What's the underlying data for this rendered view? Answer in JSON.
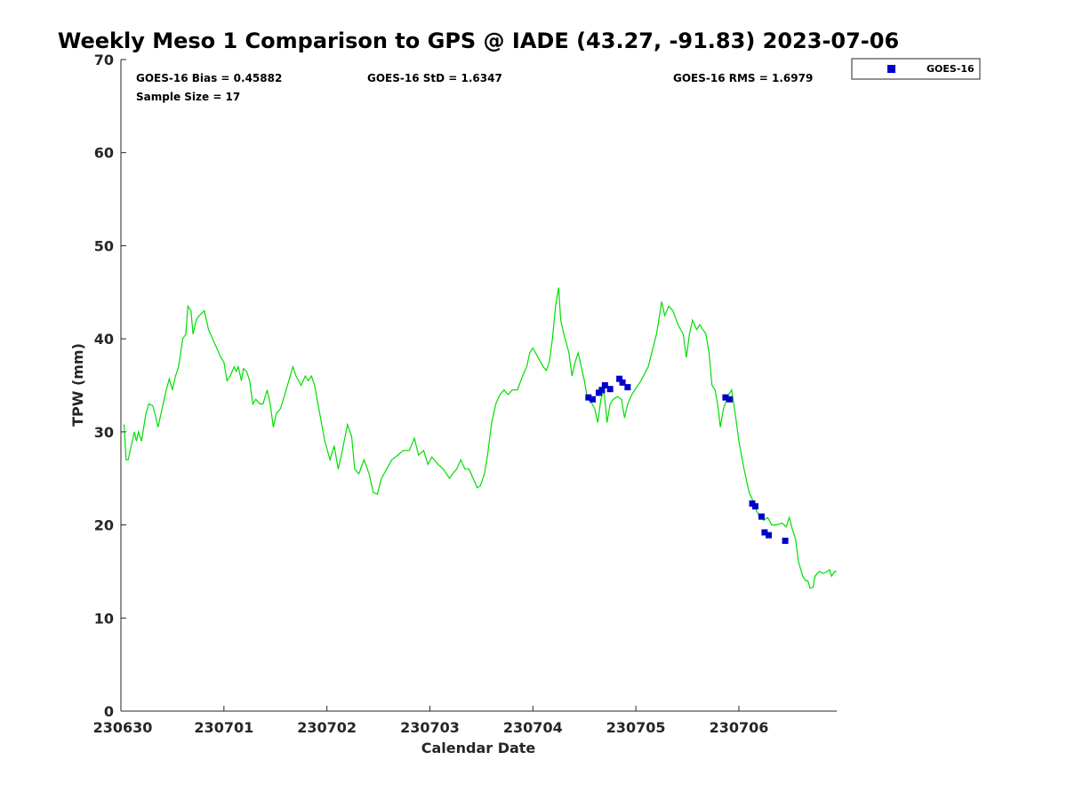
{
  "chart_data": {
    "type": "line+scatter",
    "title": "Weekly Meso 1 Comparison to GPS @ IADE (43.27, -91.83) 2023-07-06",
    "xlabel": "Calendar Date",
    "ylabel": "TPW (mm)",
    "xlim": [
      0,
      6.95
    ],
    "ylim": [
      0,
      70
    ],
    "x_ticks": [
      0,
      1,
      2,
      3,
      4,
      5,
      6
    ],
    "x_tick_labels": [
      "230630",
      "230701",
      "230702",
      "230703",
      "230704",
      "230705",
      "230706"
    ],
    "y_ticks": [
      0,
      10,
      20,
      30,
      40,
      50,
      60,
      70
    ],
    "y_tick_labels": [
      "0",
      "10",
      "20",
      "30",
      "40",
      "50",
      "60",
      "70"
    ],
    "stats": {
      "bias": "GOES-16 Bias = 0.45882",
      "std": "GOES-16 StD = 1.6347",
      "rms": "GOES-16 RMS = 1.6979",
      "sample_size": "Sample Size = 17"
    },
    "legend": {
      "label": "GOES-16",
      "color": "#0000cc",
      "placement": "top-right outside"
    },
    "series": [
      {
        "name": "GPS",
        "type": "line",
        "color": "#00dd00",
        "points": [
          [
            0.03,
            30.8
          ],
          [
            0.05,
            27.0
          ],
          [
            0.07,
            27.0
          ],
          [
            0.1,
            28.5
          ],
          [
            0.13,
            30.0
          ],
          [
            0.15,
            29.0
          ],
          [
            0.17,
            30.0
          ],
          [
            0.2,
            29.0
          ],
          [
            0.24,
            31.8
          ],
          [
            0.27,
            33.0
          ],
          [
            0.31,
            32.8
          ],
          [
            0.34,
            31.5
          ],
          [
            0.36,
            30.5
          ],
          [
            0.4,
            32.5
          ],
          [
            0.44,
            34.5
          ],
          [
            0.47,
            35.7
          ],
          [
            0.5,
            34.5
          ],
          [
            0.53,
            36.0
          ],
          [
            0.56,
            37.0
          ],
          [
            0.6,
            40.0
          ],
          [
            0.63,
            40.5
          ],
          [
            0.65,
            43.5
          ],
          [
            0.68,
            43.0
          ],
          [
            0.7,
            40.5
          ],
          [
            0.73,
            42.0
          ],
          [
            0.76,
            42.5
          ],
          [
            0.81,
            43.0
          ],
          [
            0.85,
            41.0
          ],
          [
            0.91,
            39.5
          ],
          [
            0.97,
            38.0
          ],
          [
            1.0,
            37.5
          ],
          [
            1.03,
            35.5
          ],
          [
            1.06,
            36.0
          ],
          [
            1.1,
            37.0
          ],
          [
            1.12,
            36.5
          ],
          [
            1.14,
            37.0
          ],
          [
            1.17,
            35.5
          ],
          [
            1.19,
            36.8
          ],
          [
            1.22,
            36.5
          ],
          [
            1.25,
            35.5
          ],
          [
            1.28,
            33.0
          ],
          [
            1.31,
            33.5
          ],
          [
            1.35,
            33.0
          ],
          [
            1.38,
            33.0
          ],
          [
            1.42,
            34.5
          ],
          [
            1.45,
            33.0
          ],
          [
            1.48,
            30.5
          ],
          [
            1.51,
            32.0
          ],
          [
            1.55,
            32.5
          ],
          [
            1.59,
            34.0
          ],
          [
            1.63,
            35.5
          ],
          [
            1.67,
            37.0
          ],
          [
            1.7,
            36.0
          ],
          [
            1.75,
            35.0
          ],
          [
            1.79,
            36.0
          ],
          [
            1.82,
            35.5
          ],
          [
            1.85,
            36.0
          ],
          [
            1.88,
            35.0
          ],
          [
            1.93,
            32.0
          ],
          [
            1.98,
            29.0
          ],
          [
            2.03,
            27.0
          ],
          [
            2.07,
            28.5
          ],
          [
            2.11,
            26.0
          ],
          [
            2.15,
            28.0
          ],
          [
            2.2,
            30.8
          ],
          [
            2.24,
            29.5
          ],
          [
            2.27,
            26.0
          ],
          [
            2.31,
            25.5
          ],
          [
            2.36,
            27.0
          ],
          [
            2.41,
            25.5
          ],
          [
            2.45,
            23.5
          ],
          [
            2.49,
            23.3
          ],
          [
            2.53,
            25.0
          ],
          [
            2.58,
            26.0
          ],
          [
            2.63,
            27.0
          ],
          [
            2.69,
            27.5
          ],
          [
            2.74,
            28.0
          ],
          [
            2.8,
            28.0
          ],
          [
            2.85,
            29.3
          ],
          [
            2.89,
            27.5
          ],
          [
            2.94,
            28.0
          ],
          [
            2.98,
            26.5
          ],
          [
            3.02,
            27.3
          ],
          [
            3.08,
            26.5
          ],
          [
            3.13,
            26.0
          ],
          [
            3.19,
            25.0
          ],
          [
            3.22,
            25.5
          ],
          [
            3.26,
            26.0
          ],
          [
            3.3,
            27.0
          ],
          [
            3.34,
            26.0
          ],
          [
            3.38,
            26.0
          ],
          [
            3.42,
            25.0
          ],
          [
            3.46,
            24.0
          ],
          [
            3.49,
            24.2
          ],
          [
            3.53,
            25.5
          ],
          [
            3.56,
            27.5
          ],
          [
            3.6,
            31.0
          ],
          [
            3.64,
            33.0
          ],
          [
            3.68,
            34.0
          ],
          [
            3.72,
            34.5
          ],
          [
            3.76,
            34.0
          ],
          [
            3.8,
            34.5
          ],
          [
            3.85,
            34.5
          ],
          [
            3.9,
            36.0
          ],
          [
            3.94,
            37.0
          ],
          [
            3.97,
            38.5
          ],
          [
            4.0,
            39.0
          ],
          [
            4.05,
            38.0
          ],
          [
            4.1,
            37.0
          ],
          [
            4.13,
            36.6
          ],
          [
            4.16,
            37.5
          ],
          [
            4.19,
            40.0
          ],
          [
            4.22,
            43.5
          ],
          [
            4.25,
            45.5
          ],
          [
            4.27,
            42.0
          ],
          [
            4.3,
            40.5
          ],
          [
            4.35,
            38.5
          ],
          [
            4.38,
            36.0
          ],
          [
            4.41,
            37.5
          ],
          [
            4.44,
            38.5
          ],
          [
            4.47,
            37.0
          ],
          [
            4.5,
            35.5
          ],
          [
            4.53,
            33.5
          ],
          [
            4.56,
            33.3
          ],
          [
            4.6,
            32.5
          ],
          [
            4.63,
            31.0
          ],
          [
            4.66,
            33.5
          ],
          [
            4.69,
            34.5
          ],
          [
            4.72,
            31.0
          ],
          [
            4.75,
            33.0
          ],
          [
            4.78,
            33.5
          ],
          [
            4.82,
            33.8
          ],
          [
            4.86,
            33.5
          ],
          [
            4.89,
            31.5
          ],
          [
            4.92,
            33.0
          ],
          [
            4.96,
            34.0
          ],
          [
            5.05,
            35.5
          ],
          [
            5.12,
            37.0
          ],
          [
            5.2,
            40.5
          ],
          [
            5.23,
            42.5
          ],
          [
            5.25,
            44.0
          ],
          [
            5.28,
            42.5
          ],
          [
            5.32,
            43.5
          ],
          [
            5.36,
            43.0
          ],
          [
            5.41,
            41.5
          ],
          [
            5.46,
            40.5
          ],
          [
            5.49,
            38.0
          ],
          [
            5.52,
            40.5
          ],
          [
            5.55,
            42.0
          ],
          [
            5.59,
            41.0
          ],
          [
            5.62,
            41.5
          ],
          [
            5.65,
            41.0
          ],
          [
            5.68,
            40.5
          ],
          [
            5.71,
            38.5
          ],
          [
            5.74,
            35.0
          ],
          [
            5.77,
            34.5
          ],
          [
            5.8,
            32.5
          ],
          [
            5.82,
            30.5
          ],
          [
            5.85,
            32.5
          ],
          [
            5.9,
            34.0
          ],
          [
            5.93,
            34.5
          ],
          [
            5.97,
            31.5
          ],
          [
            6.0,
            29.0
          ],
          [
            6.05,
            26.0
          ],
          [
            6.1,
            23.5
          ],
          [
            6.14,
            22.5
          ],
          [
            6.17,
            21.5
          ],
          [
            6.2,
            21.0
          ],
          [
            6.24,
            20.5
          ],
          [
            6.28,
            20.8
          ],
          [
            6.32,
            20.0
          ],
          [
            6.36,
            20.0
          ],
          [
            6.42,
            20.2
          ],
          [
            6.46,
            19.8
          ],
          [
            6.49,
            20.8
          ],
          [
            6.52,
            19.5
          ],
          [
            6.55,
            18.5
          ],
          [
            6.58,
            16.0
          ],
          [
            6.62,
            14.5
          ],
          [
            6.65,
            14.0
          ],
          [
            6.67,
            14.0
          ],
          [
            6.69,
            13.2
          ],
          [
            6.72,
            13.3
          ],
          [
            6.74,
            14.5
          ],
          [
            6.78,
            15.0
          ],
          [
            6.82,
            14.8
          ],
          [
            6.86,
            15.0
          ],
          [
            6.88,
            15.2
          ],
          [
            6.9,
            14.5
          ],
          [
            6.93,
            15.0
          ],
          [
            6.95,
            15.0
          ]
        ]
      },
      {
        "name": "GOES-16",
        "type": "scatter",
        "color": "#0000cc",
        "points": [
          [
            4.54,
            33.7
          ],
          [
            4.58,
            33.5
          ],
          [
            4.64,
            34.2
          ],
          [
            4.67,
            34.5
          ],
          [
            4.7,
            35.0
          ],
          [
            4.75,
            34.6
          ],
          [
            4.84,
            35.7
          ],
          [
            4.87,
            35.3
          ],
          [
            4.92,
            34.8
          ],
          [
            5.87,
            33.7
          ],
          [
            5.91,
            33.5
          ],
          [
            6.13,
            22.3
          ],
          [
            6.16,
            22.0
          ],
          [
            6.22,
            20.9
          ],
          [
            6.25,
            19.2
          ],
          [
            6.29,
            18.9
          ],
          [
            6.45,
            18.3
          ]
        ]
      }
    ]
  }
}
